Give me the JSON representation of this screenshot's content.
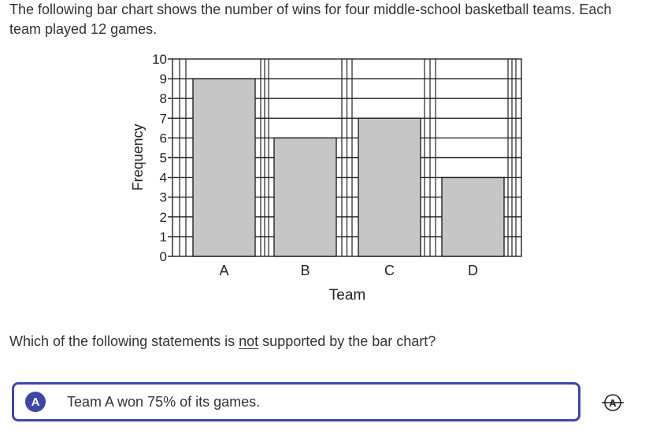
{
  "intro": {
    "text": "The following bar chart shows the number of wins for four middle-school basketball teams. Each team played 12 games."
  },
  "chart_data": {
    "type": "bar",
    "categories": [
      "A",
      "B",
      "C",
      "D"
    ],
    "values": [
      9,
      6,
      7,
      4
    ],
    "xlabel": "Team",
    "ylabel": "Frequency",
    "ylim": [
      0,
      10
    ],
    "yticks": [
      "0",
      "1",
      "2",
      "3",
      "4",
      "5",
      "6",
      "7",
      "8",
      "9",
      "10"
    ],
    "grid": true,
    "bar_color": "#c6c6c6"
  },
  "question": {
    "before": "Which of the following statements is ",
    "emphasis": "not",
    "after": " supported by the bar chart?"
  },
  "choices": [
    {
      "letter": "A",
      "text": "Team A won 75% of its games."
    }
  ],
  "colors": {
    "accent": "#3e46a8"
  },
  "icons": {
    "strikethrough": "strikethrough-letter-a-icon"
  }
}
